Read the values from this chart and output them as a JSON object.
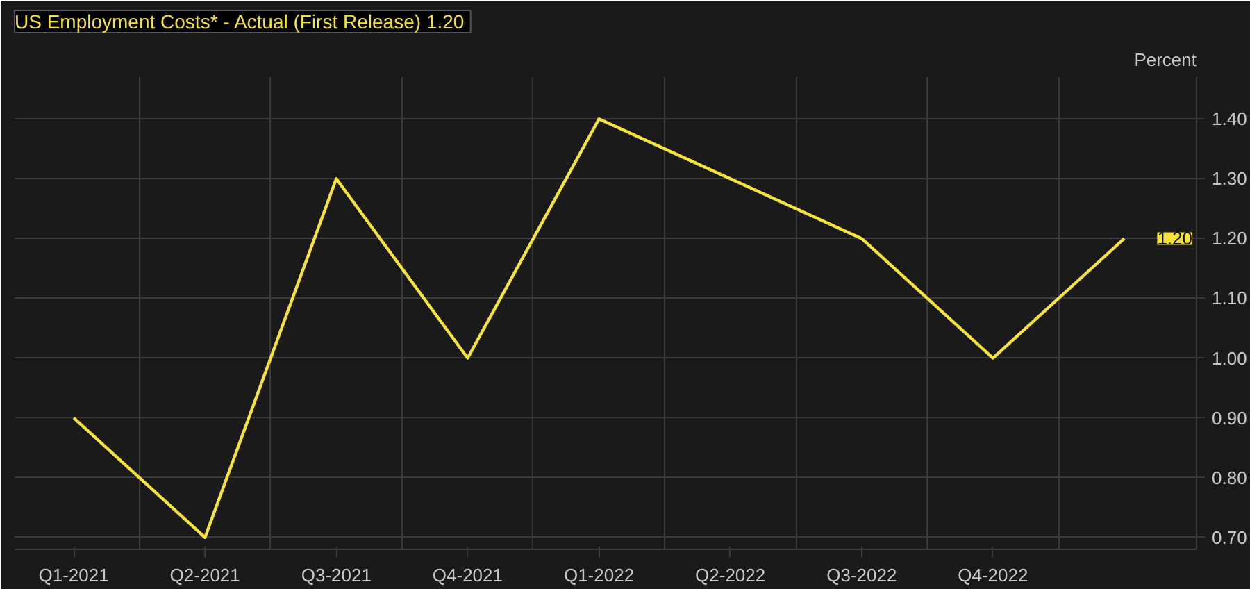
{
  "chart_data": {
    "type": "line",
    "title": "US Employment Costs* - Actual (First Release)  1.20",
    "ylabel": "Percent",
    "categories": [
      "Q1-2021",
      "Q2-2021",
      "Q3-2021",
      "Q4-2021",
      "Q1-2022",
      "Q2-2022",
      "Q3-2022",
      "Q4-2022",
      null
    ],
    "series": [
      {
        "color": "#f5e23c",
        "values": [
          0.9,
          0.7,
          1.3,
          1.0,
          1.4,
          1.3,
          1.2,
          1.0,
          1.2
        ],
        "value_labels": [
          null,
          null,
          null,
          null,
          null,
          null,
          null,
          null,
          "1.20"
        ]
      }
    ],
    "ylim": [
      0.68,
      1.47
    ],
    "yticks": [
      {
        "value": 0.7,
        "label": "0.70"
      },
      {
        "value": 0.8,
        "label": "0.80"
      },
      {
        "value": 0.9,
        "label": "0.90"
      },
      {
        "value": 1.0,
        "label": "1.00"
      },
      {
        "value": 1.1,
        "label": "1.10"
      },
      {
        "value": 1.2,
        "label": "1.20"
      },
      {
        "value": 1.3,
        "label": "1.30"
      },
      {
        "value": 1.4,
        "label": "1.40"
      }
    ],
    "grid": true,
    "marker": "none",
    "line_style": "solid"
  }
}
